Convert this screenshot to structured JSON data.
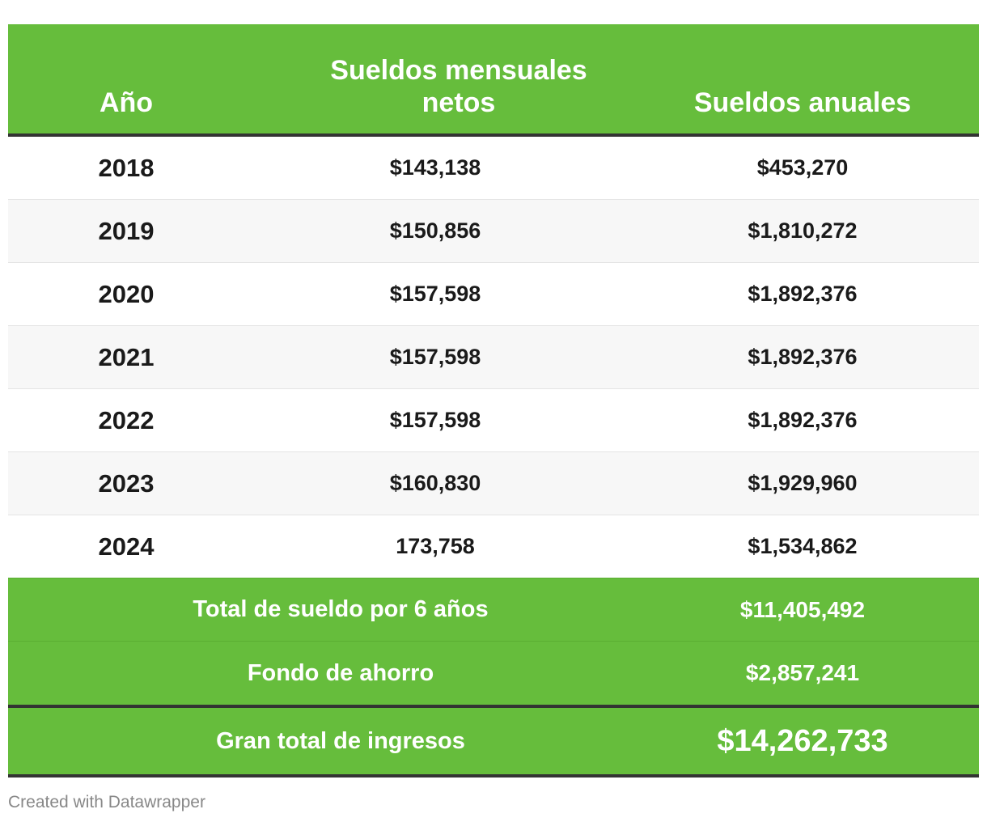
{
  "chart_data": {
    "type": "table",
    "columns": [
      "Año",
      "Sueldos mensuales netos",
      "Sueldos anuales"
    ],
    "rows": [
      {
        "year": "2018",
        "monthly": "$143,138",
        "annual": "$453,270"
      },
      {
        "year": "2019",
        "monthly": "$150,856",
        "annual": "$1,810,272"
      },
      {
        "year": "2020",
        "monthly": "$157,598",
        "annual": "$1,892,376"
      },
      {
        "year": "2021",
        "monthly": "$157,598",
        "annual": "$1,892,376"
      },
      {
        "year": "2022",
        "monthly": "$157,598",
        "annual": "$1,892,376"
      },
      {
        "year": "2023",
        "monthly": "$160,830",
        "annual": "$1,929,960"
      },
      {
        "year": "2024",
        "monthly": "173,758",
        "annual": "$1,534,862"
      }
    ],
    "summary": [
      {
        "label": "Total de sueldo por 6 años",
        "value": "$11,405,492"
      },
      {
        "label": "Fondo de ahorro",
        "value": "$2,857,241"
      },
      {
        "label": "Gran total de ingresos",
        "value": "$14,262,733"
      }
    ]
  },
  "footer": "Created with Datawrapper",
  "colors": {
    "header_bg": "#66bd3c",
    "header_text": "#ffffff",
    "rule": "#333333",
    "stripe": "#f7f7f7"
  }
}
